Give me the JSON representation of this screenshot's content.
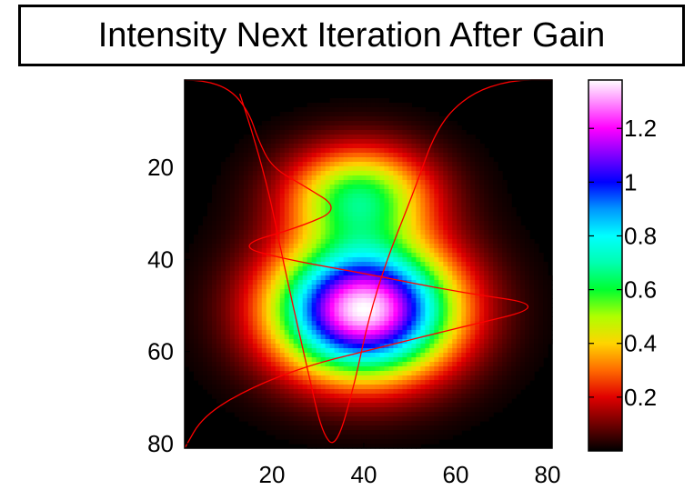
{
  "chart_data": {
    "type": "heatmap",
    "title": "Intensity Next Iteration After Gain",
    "xlabel": "",
    "ylabel": "",
    "x_ticks": [
      "20",
      "40",
      "60",
      "80"
    ],
    "y_ticks": [
      "20",
      "40",
      "60",
      "80"
    ],
    "x_range": [
      1,
      81
    ],
    "y_range": [
      1,
      81
    ],
    "y_axis_direction": "top-to-bottom",
    "colormap": "hsv-like (black-red-yellow-green-cyan-blue-magenta-white)",
    "colorbar": {
      "range": [
        0,
        1.38
      ],
      "ticks": [
        "0.2",
        "0.4",
        "0.6",
        "0.8",
        "1",
        "1.2"
      ],
      "stops": [
        {
          "v": 0.0,
          "color": "#000000"
        },
        {
          "v": 0.2,
          "color": "#e00000"
        },
        {
          "v": 0.3,
          "color": "#ff6a00"
        },
        {
          "v": 0.4,
          "color": "#ffd400"
        },
        {
          "v": 0.5,
          "color": "#b0ff00"
        },
        {
          "v": 0.6,
          "color": "#00ff30"
        },
        {
          "v": 0.7,
          "color": "#00ffb0"
        },
        {
          "v": 0.8,
          "color": "#00ffff"
        },
        {
          "v": 0.9,
          "color": "#0096ff"
        },
        {
          "v": 1.0,
          "color": "#0000ff"
        },
        {
          "v": 1.1,
          "color": "#8000ff"
        },
        {
          "v": 1.2,
          "color": "#ff00ff"
        },
        {
          "v": 1.3,
          "color": "#ff90ff"
        },
        {
          "v": 1.38,
          "color": "#ffffff"
        }
      ]
    },
    "blobs": [
      {
        "cx": 40,
        "cy": 51,
        "sx": 13.5,
        "sy": 10,
        "amp": 1.38
      },
      {
        "cx": 39,
        "cy": 26,
        "sx": 11,
        "sy": 7.5,
        "amp": 0.6
      }
    ],
    "overlay_curve": {
      "color": "#ff0000",
      "points": [
        [
          1,
          1
        ],
        [
          5,
          1
        ],
        [
          11,
          3
        ],
        [
          15,
          8
        ],
        [
          17,
          14
        ],
        [
          20,
          20
        ],
        [
          27,
          24
        ],
        [
          35,
          29
        ],
        [
          26,
          33
        ],
        [
          12,
          37
        ],
        [
          23,
          40
        ],
        [
          40,
          43
        ],
        [
          60,
          47
        ],
        [
          81,
          50
        ],
        [
          60,
          55
        ],
        [
          40,
          60
        ],
        [
          28,
          63
        ],
        [
          15,
          68
        ],
        [
          5,
          74
        ],
        [
          1,
          81
        ],
        [
          13,
          4
        ],
        [
          18,
          19
        ],
        [
          23,
          43
        ],
        [
          28,
          65
        ],
        [
          31,
          78
        ],
        [
          34,
          81
        ],
        [
          38,
          67
        ],
        [
          41,
          53
        ],
        [
          45,
          40
        ],
        [
          51,
          25
        ],
        [
          56,
          11
        ],
        [
          63,
          4
        ],
        [
          72,
          1
        ],
        [
          81,
          1
        ]
      ],
      "segments": [
        [
          0,
          1,
          2,
          3,
          4,
          5,
          6,
          7,
          8,
          9,
          10,
          11,
          12,
          13,
          14,
          15,
          16,
          17,
          18,
          19
        ],
        [
          20,
          21,
          22,
          23,
          24,
          25,
          26,
          27,
          28,
          29,
          30,
          31,
          32,
          33
        ]
      ]
    }
  }
}
